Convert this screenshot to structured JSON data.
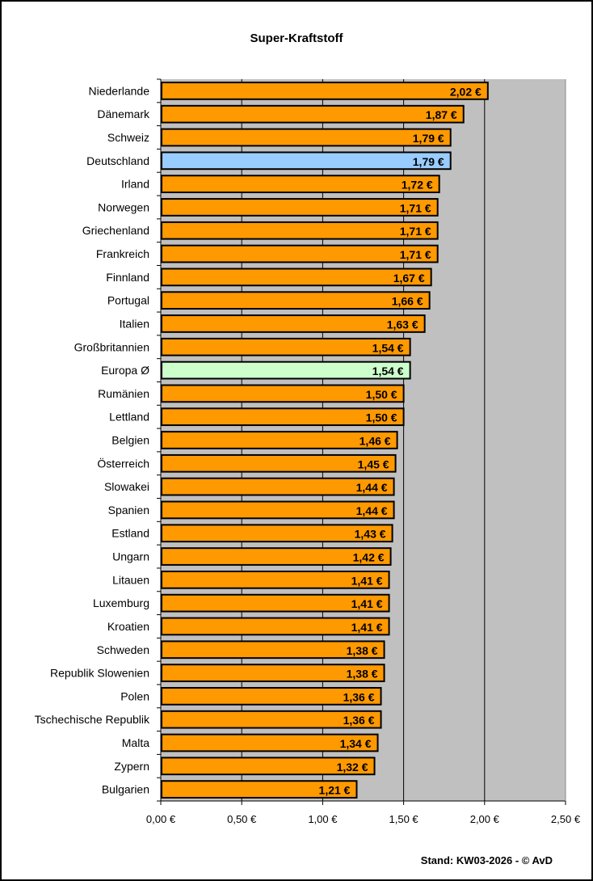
{
  "chart_data": {
    "type": "bar",
    "orientation": "horizontal",
    "title": "Super-Kraftstoff",
    "footer": "Stand: KW03-2026 - © AvD",
    "categories": [
      "Niederlande",
      "Dänemark",
      "Schweiz",
      "Deutschland",
      "Irland",
      "Norwegen",
      "Griechenland",
      "Frankreich",
      "Finnland",
      "Portugal",
      "Italien",
      "Großbritannien",
      "Europa Ø",
      "Rumänien",
      "Lettland",
      "Belgien",
      "Österreich",
      "Slowakei",
      "Spanien",
      "Estland",
      "Ungarn",
      "Litauen",
      "Luxemburg",
      "Kroatien",
      "Schweden",
      "Republik Slowenien",
      "Polen",
      "Tschechische Republik",
      "Malta",
      "Zypern",
      "Bulgarien"
    ],
    "values": [
      2.02,
      1.87,
      1.79,
      1.79,
      1.72,
      1.71,
      1.71,
      1.71,
      1.67,
      1.66,
      1.63,
      1.54,
      1.54,
      1.5,
      1.5,
      1.46,
      1.45,
      1.44,
      1.44,
      1.43,
      1.42,
      1.41,
      1.41,
      1.41,
      1.38,
      1.38,
      1.36,
      1.36,
      1.34,
      1.32,
      1.21
    ],
    "value_labels": [
      "2,02 €",
      "1,87 €",
      "1,79 €",
      "1,79 €",
      "1,72 €",
      "1,71 €",
      "1,71 €",
      "1,71 €",
      "1,67 €",
      "1,66 €",
      "1,63 €",
      "1,54 €",
      "1,54 €",
      "1,50 €",
      "1,50 €",
      "1,46 €",
      "1,45 €",
      "1,44 €",
      "1,44 €",
      "1,43 €",
      "1,42 €",
      "1,41 €",
      "1,41 €",
      "1,41 €",
      "1,38 €",
      "1,38 €",
      "1,36 €",
      "1,36 €",
      "1,34 €",
      "1,32 €",
      "1,21 €"
    ],
    "xlim": [
      0,
      2.5
    ],
    "xticks": [
      0,
      0.5,
      1.0,
      1.5,
      2.0,
      2.5
    ],
    "xtick_labels": [
      "0,00 €",
      "0,50 €",
      "1,00 €",
      "1,50 €",
      "2,00 €",
      "2,50 €"
    ],
    "grid": "vertical",
    "legend": "none",
    "colors": {
      "default": "#FF9900",
      "highlight": {
        "Deutschland": "#99CCFF",
        "Europa Ø": "#CCFFCC"
      },
      "plot_background": "#C0C0C0",
      "bar_border": "#000000"
    }
  }
}
